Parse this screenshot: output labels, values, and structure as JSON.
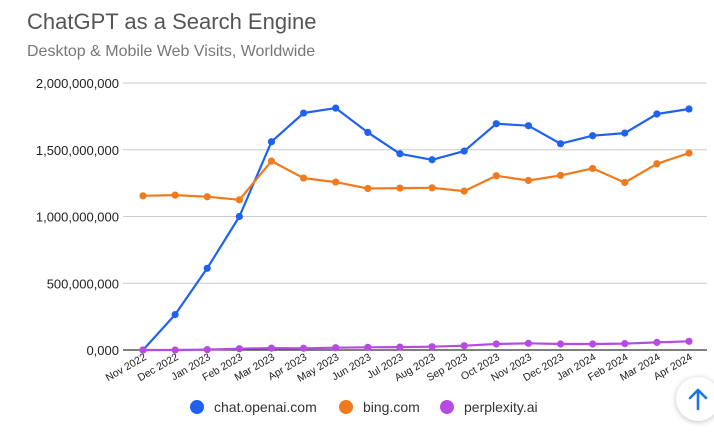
{
  "chart_data": {
    "type": "line",
    "title": "ChatGPT as a Search Engine",
    "subtitle": "Desktop & Mobile Web Visits, Worldwide",
    "categories": [
      "Nov 2022",
      "Dec 2022",
      "Jan 2023",
      "Feb 2023",
      "Mar 2023",
      "Apr 2023",
      "May 2023",
      "Jun 2023",
      "Jul 2023",
      "Aug 2023",
      "Sep 2023",
      "Oct 2023",
      "Nov 2023",
      "Dec 2023",
      "Jan 2024",
      "Feb 2024",
      "Mar 2024",
      "Apr 2024"
    ],
    "ylim": [
      0,
      2000000000
    ],
    "yticks": [
      0,
      500000000,
      1000000000,
      1500000000,
      2000000000
    ],
    "ytick_labels": [
      "0,000",
      "500,000,000",
      "1,000,000,000",
      "1,500,000,000",
      "2,000,000,000"
    ],
    "grid": true,
    "legend_position": "bottom",
    "series": [
      {
        "name": "chat.openai.com",
        "color": "#1f62f0",
        "values": [
          0,
          265000000,
          612000000,
          1000000000,
          1560000000,
          1775000000,
          1812000000,
          1630000000,
          1470000000,
          1425000000,
          1490000000,
          1695000000,
          1680000000,
          1545000000,
          1605000000,
          1625000000,
          1768000000,
          1805000000
        ]
      },
      {
        "name": "bing.com",
        "color": "#f07a1d",
        "values": [
          1155000000,
          1160000000,
          1148000000,
          1125000000,
          1415000000,
          1288000000,
          1258000000,
          1210000000,
          1213000000,
          1215000000,
          1190000000,
          1305000000,
          1270000000,
          1308000000,
          1360000000,
          1255000000,
          1395000000,
          1475000000
        ]
      },
      {
        "name": "perplexity.ai",
        "color": "#b64be3",
        "values": [
          0,
          0,
          3000000,
          10000000,
          14000000,
          13000000,
          17000000,
          20000000,
          22000000,
          25000000,
          32000000,
          45000000,
          50000000,
          45000000,
          45000000,
          48000000,
          57000000,
          65000000
        ]
      }
    ]
  },
  "ui": {
    "scroll_top_icon": "arrow-up-icon",
    "accent": "#1a73e8"
  }
}
